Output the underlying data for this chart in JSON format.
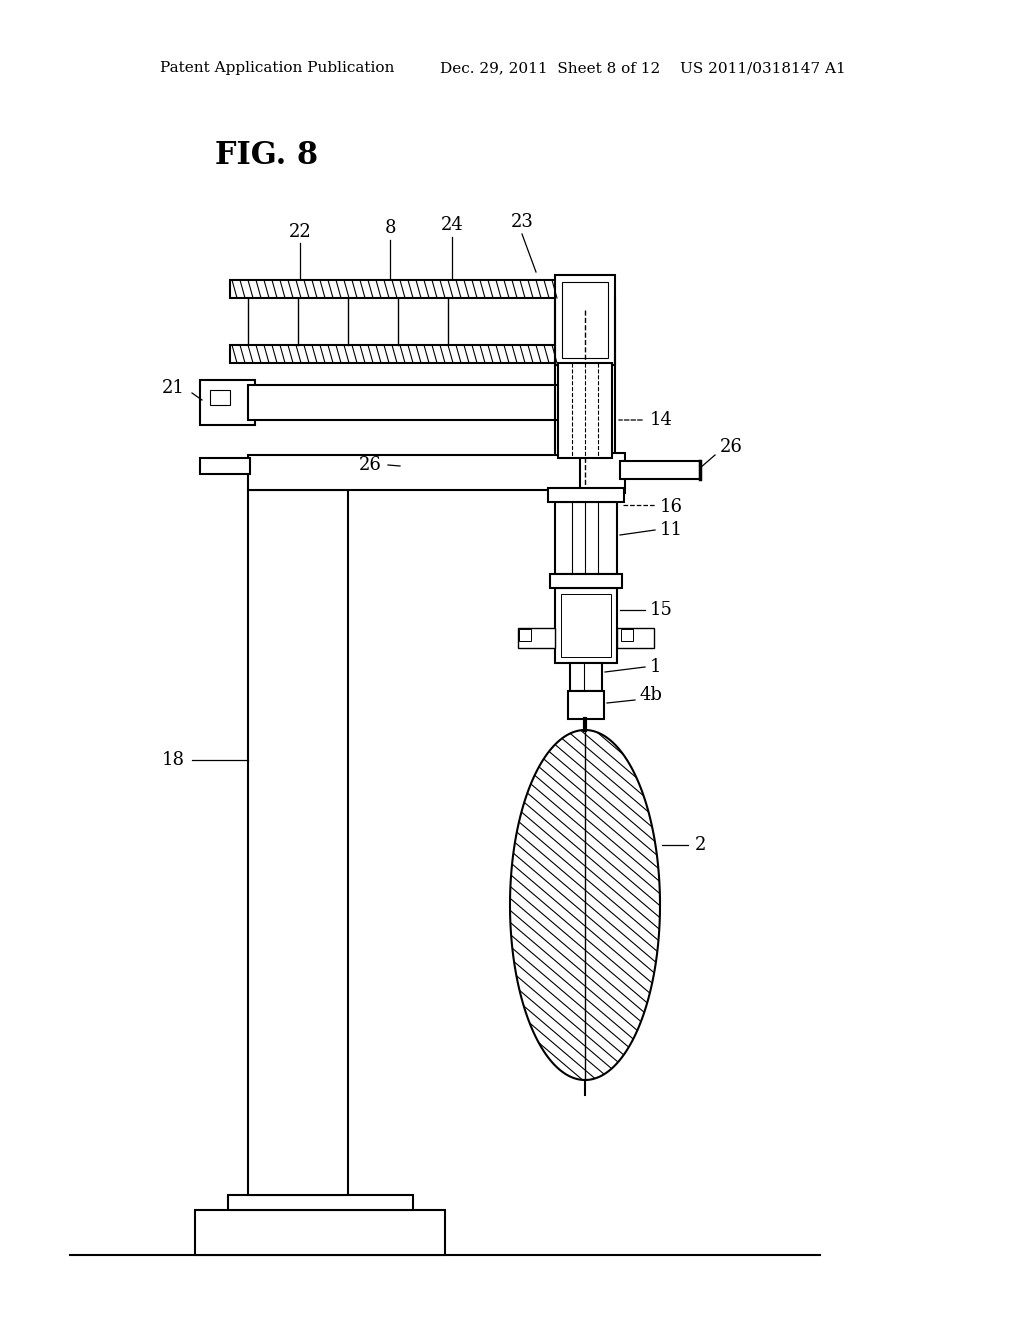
{
  "bg_color": "#ffffff",
  "line_color": "#000000",
  "header_line1": "Patent Application Publication",
  "header_line2": "Dec. 29, 2011  Sheet 8 of 12",
  "header_line3": "US 2011/0318147 A1",
  "fig_label": "FIG. 8"
}
